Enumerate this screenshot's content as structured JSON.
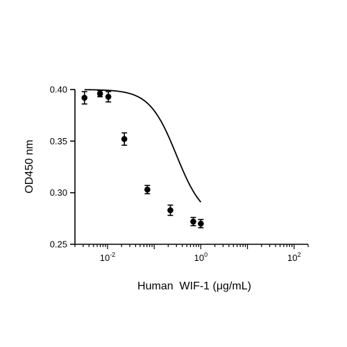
{
  "chart_data": {
    "type": "scatter",
    "title": "",
    "xlabel": "Human  WIF-1 (μg/mL)",
    "ylabel": "OD450 nm",
    "x_scale": "log",
    "xlim": [
      0.002,
      200
    ],
    "ylim": [
      0.25,
      0.4
    ],
    "x_ticks": [
      {
        "value": 0.01,
        "base": "10",
        "exp": "-2"
      },
      {
        "value": 1,
        "base": "10",
        "exp": "0"
      },
      {
        "value": 100,
        "base": "10",
        "exp": "2"
      }
    ],
    "y_ticks": [
      {
        "value": 0.25,
        "label": "0.25"
      },
      {
        "value": 0.3,
        "label": "0.30"
      },
      {
        "value": 0.35,
        "label": "0.35"
      },
      {
        "value": 0.4,
        "label": "0.40"
      }
    ],
    "grid": false,
    "legend": false,
    "colors": {
      "marker": "#000000",
      "curve": "#000000"
    },
    "points": [
      {
        "x": 0.0032,
        "y": 0.392,
        "err": 0.006
      },
      {
        "x": 0.0069,
        "y": 0.396,
        "err": 0.003
      },
      {
        "x": 0.0104,
        "y": 0.393,
        "err": 0.005
      },
      {
        "x": 0.0229,
        "y": 0.352,
        "err": 0.006
      },
      {
        "x": 0.0714,
        "y": 0.303,
        "err": 0.004
      },
      {
        "x": 0.2223,
        "y": 0.283,
        "err": 0.005
      },
      {
        "x": 0.6887,
        "y": 0.272,
        "err": 0.004
      },
      {
        "x": 1.0,
        "y": 0.27,
        "err": 0.004
      }
    ],
    "fit": {
      "model": "4PL",
      "top": 0.4,
      "bottom": 0.273,
      "ec50": 0.3,
      "hill": 1.5
    }
  }
}
